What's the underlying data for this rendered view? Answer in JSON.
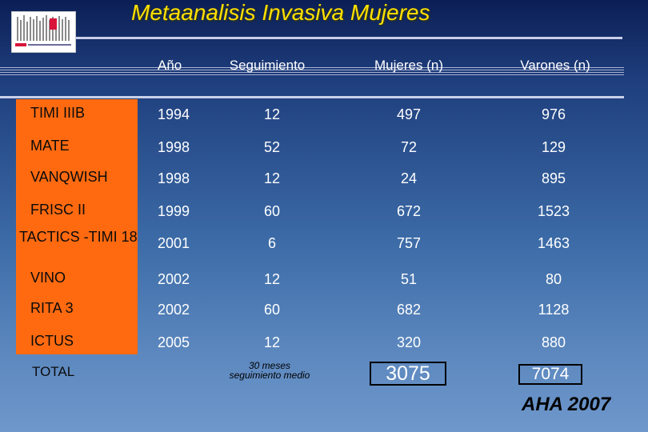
{
  "title": "Metaanalisis Invasiva Mujeres",
  "logo": {
    "icon": "striped-bars-logo"
  },
  "table": {
    "columns": [
      "Año",
      "Seguimiento",
      "Mujeres (n)",
      "Varones (n)"
    ],
    "rows": [
      {
        "study": "TIMI IIIB",
        "year": "1994",
        "followup": "12",
        "women": "497",
        "men": "976"
      },
      {
        "study": "MATE",
        "year": "1998",
        "followup": "52",
        "women": "72",
        "men": "129"
      },
      {
        "study": "VANQWISH",
        "year": "1998",
        "followup": "12",
        "women": "24",
        "men": "895"
      },
      {
        "study": "FRISC II",
        "year": "1999",
        "followup": "60",
        "women": "672",
        "men": "1523"
      },
      {
        "study": "TACTICS -TIMI 18",
        "year": "2001",
        "followup": "6",
        "women": "757",
        "men": "1463"
      },
      {
        "study": "VINO",
        "year": "2002",
        "followup": "12",
        "women": "51",
        "men": "80"
      },
      {
        "study": "RITA 3",
        "year": "2002",
        "followup": "60",
        "women": "682",
        "men": "1128"
      },
      {
        "study": "ICTUS",
        "year": "2005",
        "followup": "12",
        "women": "320",
        "men": "880"
      }
    ],
    "total": {
      "label": "TOTAL",
      "followup_note_line1": "30 meses",
      "followup_note_line2": "seguimiento medio",
      "women": "3075",
      "men": "7074"
    }
  },
  "source": "AHA 2007",
  "colors": {
    "title": "#ffe000",
    "label_column": "#ff6a10",
    "background_top": "#0b1f55",
    "background_bottom": "#6f98cc"
  }
}
